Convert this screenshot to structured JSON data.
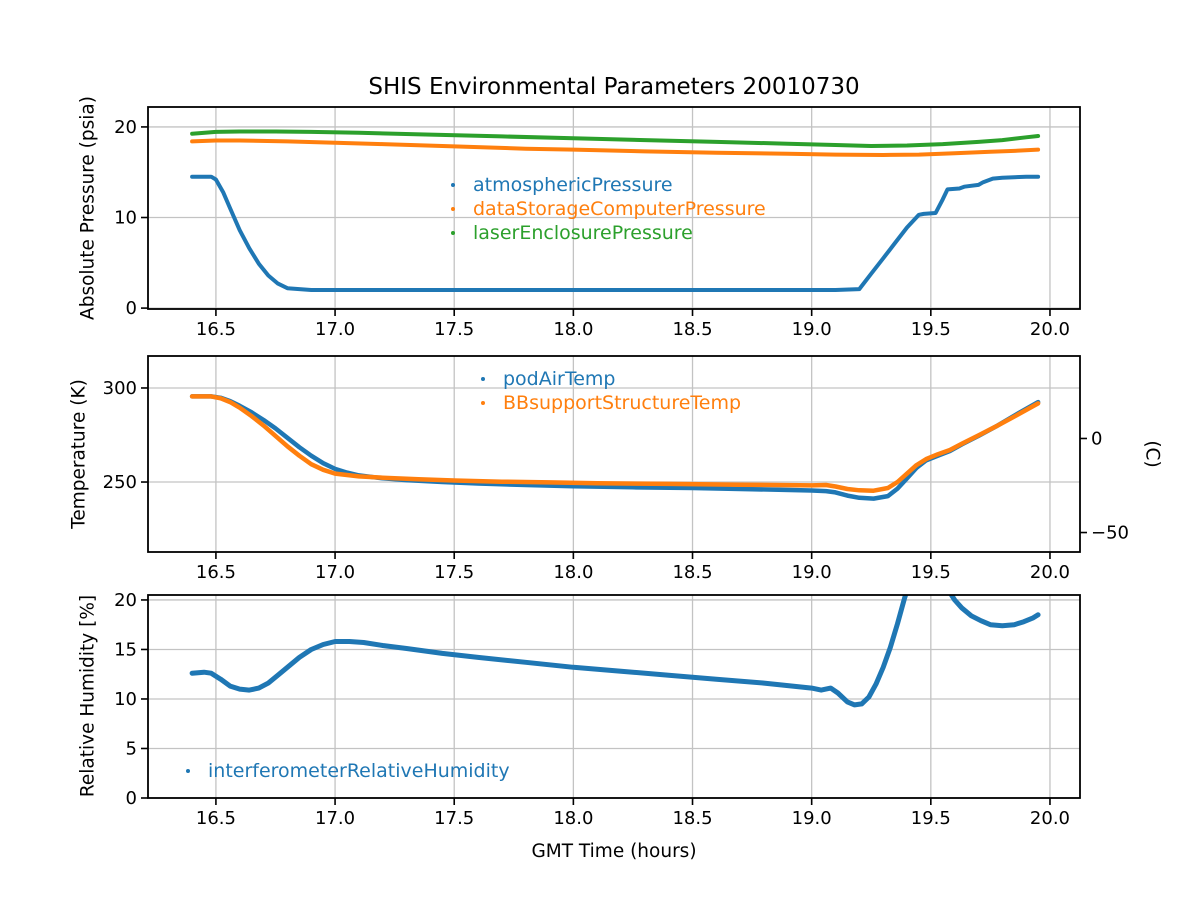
{
  "figure": {
    "title": "SHIS Environmental Parameters 20010730",
    "xlabel": "GMT Time (hours)",
    "background": "#ffffff",
    "colors": {
      "blue": "#1f77b4",
      "orange": "#ff7f0e",
      "green": "#2ca02c",
      "grid": "#c3c3c3",
      "frame": "#000000",
      "text": "#000000"
    }
  },
  "chart_data": [
    {
      "type": "scatter",
      "title": "SHIS Environmental Parameters 20010730",
      "ylabel": "Absolute Pressure (psia)",
      "grid": true,
      "xlim": [
        16.215,
        20.126
      ],
      "ylim": [
        -0.1,
        22.2
      ],
      "line_width": 4,
      "xticks": {
        "values": [
          16.5,
          17.0,
          17.5,
          18.0,
          18.5,
          19.0,
          19.5,
          20.0
        ],
        "labels": [
          "16.5",
          "17.0",
          "17.5",
          "18.0",
          "18.5",
          "19.0",
          "19.5",
          "20.0"
        ]
      },
      "yticks": {
        "values": [
          0,
          10,
          20
        ],
        "labels": [
          "0",
          "10",
          "20"
        ]
      },
      "legend_position": "center",
      "series": [
        {
          "name": "atmosphericPressure",
          "color": "#1f77b4",
          "x": [
            16.4,
            16.44,
            16.48,
            16.5,
            16.53,
            16.56,
            16.6,
            16.64,
            16.68,
            16.72,
            16.76,
            16.8,
            16.9,
            17.2,
            17.6,
            18.0,
            18.4,
            18.8,
            19.1,
            19.2,
            19.25,
            19.3,
            19.35,
            19.4,
            19.45,
            19.47,
            19.52,
            19.55,
            19.57,
            19.62,
            19.64,
            19.7,
            19.72,
            19.76,
            19.8,
            19.9,
            19.95
          ],
          "y": [
            14.5,
            14.5,
            14.5,
            14.2,
            12.8,
            11.0,
            8.6,
            6.6,
            4.9,
            3.6,
            2.7,
            2.2,
            2.0,
            2.0,
            2.0,
            2.0,
            2.0,
            2.0,
            2.0,
            2.1,
            3.8,
            5.5,
            7.2,
            8.9,
            10.3,
            10.4,
            10.5,
            12.0,
            13.1,
            13.2,
            13.4,
            13.6,
            13.9,
            14.3,
            14.4,
            14.5,
            14.5
          ]
        },
        {
          "name": "dataStorageComputerPressure",
          "color": "#ff7f0e",
          "x": [
            16.4,
            16.5,
            16.6,
            16.8,
            17.0,
            17.2,
            17.5,
            17.8,
            18.0,
            18.3,
            18.6,
            18.9,
            19.1,
            19.3,
            19.45,
            19.6,
            19.75,
            19.85,
            19.95
          ],
          "y": [
            18.4,
            18.5,
            18.5,
            18.4,
            18.25,
            18.1,
            17.85,
            17.6,
            17.5,
            17.3,
            17.15,
            17.05,
            16.95,
            16.9,
            16.95,
            17.1,
            17.25,
            17.35,
            17.5
          ]
        },
        {
          "name": "laserEnclosurePressure",
          "color": "#2ca02c",
          "x": [
            16.4,
            16.5,
            16.6,
            16.75,
            16.9,
            17.1,
            17.4,
            17.7,
            18.0,
            18.3,
            18.6,
            18.9,
            19.1,
            19.25,
            19.4,
            19.55,
            19.7,
            19.8,
            19.9,
            19.95
          ],
          "y": [
            19.25,
            19.45,
            19.5,
            19.5,
            19.45,
            19.35,
            19.15,
            18.95,
            18.75,
            18.55,
            18.35,
            18.15,
            18.0,
            17.9,
            17.95,
            18.1,
            18.35,
            18.55,
            18.85,
            19.0
          ]
        }
      ]
    },
    {
      "type": "scatter",
      "ylabel": "Temperature (K)",
      "grid": true,
      "xlim": [
        16.215,
        20.126
      ],
      "ylim": [
        212.8,
        317.0
      ],
      "line_width": 4.5,
      "xticks": {
        "values": [
          16.5,
          17.0,
          17.5,
          18.0,
          18.5,
          19.0,
          19.5,
          20.0
        ],
        "labels": [
          "16.5",
          "17.0",
          "17.5",
          "18.0",
          "18.5",
          "19.0",
          "19.5",
          "20.0"
        ]
      },
      "yticks": {
        "values": [
          250,
          300
        ],
        "labels": [
          "250",
          "300"
        ]
      },
      "right_axis": {
        "label": "(C)",
        "ticks": {
          "values_in_left_units": [
            273.15,
            223.15
          ],
          "labels": [
            "0",
            "−50"
          ]
        }
      },
      "legend_position": "upper center",
      "series": [
        {
          "name": "podAirTemp",
          "color": "#1f77b4",
          "x": [
            16.4,
            16.48,
            16.52,
            16.56,
            16.6,
            16.65,
            16.7,
            16.75,
            16.8,
            16.85,
            16.9,
            16.95,
            17.0,
            17.05,
            17.1,
            17.2,
            17.3,
            17.45,
            17.6,
            17.8,
            18.0,
            18.25,
            18.5,
            18.75,
            19.0,
            19.06,
            19.1,
            19.15,
            19.2,
            19.26,
            19.32,
            19.36,
            19.4,
            19.44,
            19.48,
            19.53,
            19.58,
            19.63,
            19.7,
            19.78,
            19.86,
            19.95
          ],
          "y": [
            295.5,
            295.5,
            294.8,
            293.0,
            290.5,
            287.0,
            283.0,
            278.5,
            273.5,
            268.5,
            264.0,
            260.0,
            257.0,
            255.0,
            253.5,
            252.0,
            251.0,
            250.0,
            249.2,
            248.4,
            247.8,
            247.2,
            246.8,
            246.2,
            245.5,
            245.2,
            244.5,
            242.8,
            241.6,
            241.2,
            242.5,
            246.5,
            252.0,
            257.5,
            261.5,
            264.0,
            266.5,
            270.0,
            274.5,
            280.0,
            286.0,
            292.5
          ]
        },
        {
          "name": "BBsupportStructureTemp",
          "color": "#ff7f0e",
          "x": [
            16.4,
            16.48,
            16.52,
            16.56,
            16.6,
            16.65,
            16.7,
            16.75,
            16.8,
            16.85,
            16.9,
            16.95,
            17.0,
            17.1,
            17.2,
            17.35,
            17.5,
            17.7,
            17.9,
            18.1,
            18.4,
            18.7,
            19.0,
            19.06,
            19.1,
            19.15,
            19.2,
            19.26,
            19.32,
            19.36,
            19.4,
            19.44,
            19.48,
            19.53,
            19.58,
            19.63,
            19.7,
            19.78,
            19.86,
            19.95
          ],
          "y": [
            295.5,
            295.5,
            294.5,
            292.5,
            289.5,
            285.0,
            280.0,
            274.5,
            269.0,
            264.0,
            259.5,
            256.5,
            254.5,
            253.0,
            252.3,
            251.5,
            250.8,
            250.2,
            249.8,
            249.4,
            249.0,
            248.6,
            248.2,
            248.4,
            247.6,
            246.3,
            245.6,
            245.4,
            246.8,
            250.0,
            254.5,
            259.0,
            262.2,
            264.8,
            267.0,
            270.3,
            274.8,
            280.0,
            285.5,
            291.8
          ]
        }
      ]
    },
    {
      "type": "scatter",
      "ylabel": "Relative Humidity [%]",
      "grid": true,
      "xlim": [
        16.215,
        20.126
      ],
      "ylim": [
        0,
        20.5
      ],
      "line_width": 5,
      "xticks": {
        "values": [
          16.5,
          17.0,
          17.5,
          18.0,
          18.5,
          19.0,
          19.5,
          20.0
        ],
        "labels": [
          "16.5",
          "17.0",
          "17.5",
          "18.0",
          "18.5",
          "19.0",
          "19.5",
          "20.0"
        ]
      },
      "yticks": {
        "values": [
          0,
          5,
          10,
          15,
          20
        ],
        "labels": [
          "0",
          "5",
          "10",
          "15",
          "20"
        ]
      },
      "legend_position": "lower left",
      "series": [
        {
          "name": "interferometerRelativeHumidity",
          "color": "#1f77b4",
          "x": [
            16.4,
            16.45,
            16.48,
            16.52,
            16.56,
            16.6,
            16.64,
            16.68,
            16.72,
            16.76,
            16.8,
            16.85,
            16.9,
            16.95,
            17.0,
            17.06,
            17.12,
            17.2,
            17.3,
            17.45,
            17.6,
            17.8,
            18.0,
            18.2,
            18.4,
            18.6,
            18.8,
            19.0,
            19.04,
            19.08,
            19.11,
            19.15,
            19.18,
            19.21,
            19.24,
            19.27,
            19.3,
            19.33,
            19.36,
            19.39,
            19.42,
            19.47,
            19.52,
            19.56,
            19.6,
            19.63,
            19.67,
            19.71,
            19.75,
            19.8,
            19.85,
            19.89,
            19.93,
            19.95
          ],
          "y": [
            12.6,
            12.7,
            12.6,
            12.0,
            11.3,
            11.0,
            10.9,
            11.1,
            11.6,
            12.4,
            13.2,
            14.2,
            15.0,
            15.5,
            15.8,
            15.8,
            15.7,
            15.4,
            15.1,
            14.6,
            14.2,
            13.7,
            13.2,
            12.8,
            12.4,
            12.0,
            11.6,
            11.1,
            10.9,
            11.1,
            10.6,
            9.7,
            9.4,
            9.5,
            10.2,
            11.5,
            13.2,
            15.2,
            17.6,
            20.2,
            22.5,
            24.0,
            23.5,
            21.5,
            20.0,
            19.2,
            18.4,
            17.9,
            17.5,
            17.4,
            17.5,
            17.8,
            18.2,
            18.5
          ]
        }
      ]
    }
  ]
}
